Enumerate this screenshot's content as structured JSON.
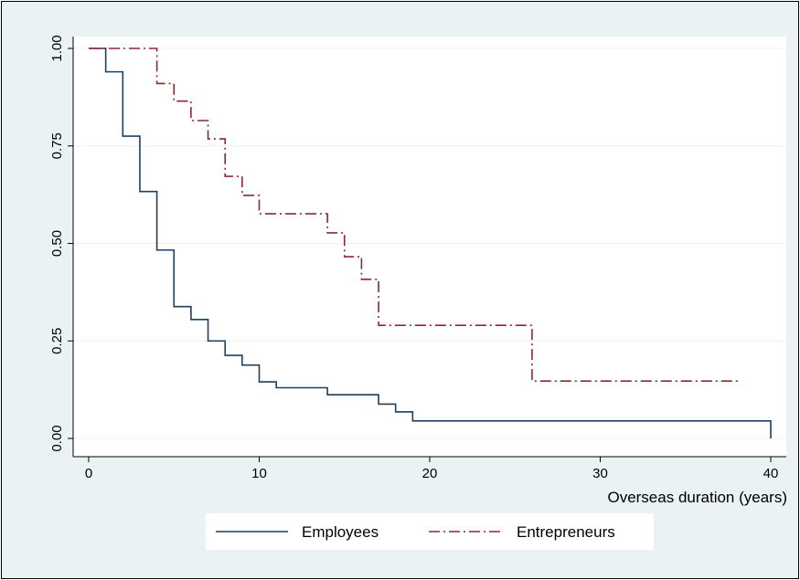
{
  "chart_data": {
    "type": "line",
    "step": true,
    "xlabel": "Overseas duration (years)",
    "ylabel": "",
    "xlim": [
      0,
      40
    ],
    "ylim": [
      0,
      1
    ],
    "x_ticks": [
      0,
      10,
      20,
      30,
      40
    ],
    "y_ticks": [
      0,
      0.25,
      0.5,
      0.75,
      1.0
    ],
    "x_tick_labels": [
      "0",
      "10",
      "20",
      "30",
      "40"
    ],
    "y_tick_labels": [
      "0.00",
      "0.25",
      "0.50",
      "0.75",
      "1.00"
    ],
    "grid": "horizontal",
    "legend_position": "bottom",
    "series": [
      {
        "name": "Employees",
        "color": "#1f3f5f",
        "dash": "solid",
        "points": [
          [
            0,
            1.0
          ],
          [
            1,
            0.94
          ],
          [
            2,
            0.775
          ],
          [
            3,
            0.633
          ],
          [
            4,
            0.483
          ],
          [
            5,
            0.338
          ],
          [
            6,
            0.305
          ],
          [
            7,
            0.25
          ],
          [
            8,
            0.213
          ],
          [
            9,
            0.188
          ],
          [
            10,
            0.145
          ],
          [
            11,
            0.13
          ],
          [
            14,
            0.112
          ],
          [
            17,
            0.088
          ],
          [
            18,
            0.068
          ],
          [
            19,
            0.045
          ],
          [
            40,
            0.0
          ]
        ]
      },
      {
        "name": "Entrepreneurs",
        "color": "#8b2a2e",
        "dash": "dashdot",
        "points": [
          [
            0,
            1.0
          ],
          [
            4,
            0.91
          ],
          [
            5,
            0.865
          ],
          [
            6,
            0.815
          ],
          [
            7,
            0.768
          ],
          [
            8,
            0.672
          ],
          [
            9,
            0.623
          ],
          [
            10,
            0.576
          ],
          [
            14,
            0.527
          ],
          [
            15,
            0.466
          ],
          [
            16,
            0.408
          ],
          [
            17,
            0.29
          ],
          [
            26,
            0.147
          ],
          [
            38.2,
            0.147
          ]
        ]
      }
    ]
  }
}
